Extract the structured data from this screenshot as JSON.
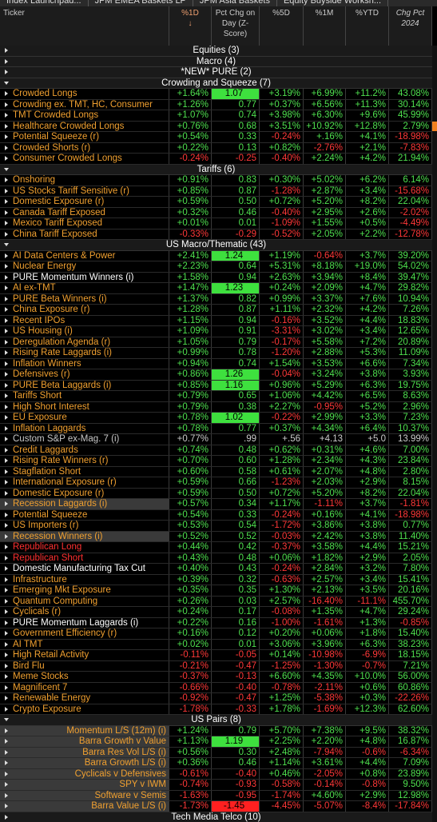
{
  "tabs": [
    "Index Launchpad...",
    "JPM EMEA Baskets LP",
    "JPM Asia Baskets",
    "Equity Buyside Worksh..."
  ],
  "columns": [
    {
      "lines": [
        "Ticker"
      ]
    },
    {
      "lines": [
        "%1D",
        "↓"
      ]
    },
    {
      "lines": [
        "Pct Chg on",
        "Day (Z-",
        "Score)"
      ]
    },
    {
      "lines": [
        "%5D"
      ]
    },
    {
      "lines": [
        "%1M"
      ]
    },
    {
      "lines": [
        "%YTD"
      ]
    },
    {
      "lines": [
        "Chg Pct",
        "2024"
      ]
    }
  ],
  "sections": [
    {
      "title": "Equities (3)"
    },
    {
      "title": "Macro (4)"
    },
    {
      "title": "*NEW* PURE (2)"
    },
    {
      "title": "Crowding and Squeeze (7)",
      "rows": [
        {
          "cells": [
            "Crowded Longs",
            "+1.64%",
            "1.07",
            "+3.19%",
            "+6.99%",
            "+11.2%",
            "43.08%"
          ],
          "highlight": "green"
        },
        {
          "cells": [
            "Crowding ex. TMT, HC, Consumer",
            "+1.26%",
            "0.77",
            "+0.37%",
            "+6.56%",
            "+11.3%",
            "30.14%"
          ]
        },
        {
          "cells": [
            "TMT Crowded Longs",
            "+1.07%",
            "0.74",
            "+3.98%",
            "+6.30%",
            "+9.6%",
            "45.99%"
          ]
        },
        {
          "cells": [
            "Healthcare Crowded Longs",
            "+0.76%",
            "0.68",
            "+3.51%",
            "+10.92%",
            "+12.8%",
            "2.79%"
          ]
        },
        {
          "cells": [
            "Potential Squeeze (r)",
            "+0.54%",
            "0.33",
            "-0.24%",
            "+.16%",
            "+4.1%",
            "-18.98%"
          ]
        },
        {
          "cells": [
            "Crowded Shorts (r)",
            "+0.22%",
            "0.13",
            "+0.82%",
            "-2.76%",
            "+2.1%",
            "-7.83%"
          ]
        },
        {
          "cells": [
            "Consumer Crowded Longs",
            "-0.24%",
            "-0.25",
            "-0.40%",
            "+2.24%",
            "+4.2%",
            "21.94%"
          ]
        }
      ]
    },
    {
      "title": "Tariffs (6)",
      "rows": [
        {
          "cells": [
            "Onshoring",
            "+0.91%",
            "0.83",
            "+0.30%",
            "+5.02%",
            "+6.2%",
            "6.14%"
          ]
        },
        {
          "cells": [
            "US Stocks Tariff Sensitive (r)",
            "+0.85%",
            "0.87",
            "-1.28%",
            "+2.87%",
            "+3.4%",
            "-15.68%"
          ]
        },
        {
          "cells": [
            "Domestic Exposure (r)",
            "+0.59%",
            "0.50",
            "+0.72%",
            "+5.20%",
            "+8.2%",
            "22.04%"
          ]
        },
        {
          "cells": [
            "Canada Tariff Exposed",
            "+0.32%",
            "0.46",
            "-0.40%",
            "+2.95%",
            "+2.6%",
            "-2.02%"
          ]
        },
        {
          "cells": [
            "Mexico Tariff Exposed",
            "+0.01%",
            "0.01",
            "-1.09%",
            "+1.55%",
            "+0.5%",
            "-4.49%"
          ]
        },
        {
          "cells": [
            "China Tariff Exposed",
            "-0.33%",
            "-0.29",
            "-0.52%",
            "+2.05%",
            "+2.2%",
            "-12.78%"
          ]
        }
      ]
    },
    {
      "title": "US Macro/Thematic (43)",
      "rows": [
        {
          "cells": [
            "AI Data Centers & Power",
            "+2.41%",
            "1.24",
            "+1.19%",
            "-0.64%",
            "+3.7%",
            "39.20%"
          ],
          "highlight": "green"
        },
        {
          "cells": [
            "Nuclear Energy",
            "+2.23%",
            "0.64",
            "+5.31%",
            "+8.18%",
            "+19.0%",
            "54.02%"
          ]
        },
        {
          "cells": [
            "PURE Momentum Winners (i)",
            "+1.58%",
            "0.94",
            "+2.63%",
            "+3.94%",
            "+8.4%",
            "39.47%"
          ],
          "name_color": "#ffffff"
        },
        {
          "cells": [
            "AI ex-TMT",
            "+1.47%",
            "1.23",
            "+0.24%",
            "+2.09%",
            "+4.7%",
            "29.82%"
          ],
          "highlight": "green"
        },
        {
          "cells": [
            "PURE Beta Winners (i)",
            "+1.37%",
            "0.82",
            "+0.99%",
            "+3.37%",
            "+7.6%",
            "10.94%"
          ]
        },
        {
          "cells": [
            "China Exposure (r)",
            "+1.28%",
            "0.87",
            "+1.11%",
            "+2.32%",
            "+4.2%",
            "7.26%"
          ]
        },
        {
          "cells": [
            "Recent IPOs",
            "+1.15%",
            "0.94",
            "-0.16%",
            "+3.52%",
            "+4.4%",
            "18.83%"
          ]
        },
        {
          "cells": [
            "US Housing (i)",
            "+1.09%",
            "0.91",
            "-3.31%",
            "+3.02%",
            "+3.4%",
            "12.65%"
          ]
        },
        {
          "cells": [
            "Deregulation Agenda (r)",
            "+1.05%",
            "0.79",
            "-0.17%",
            "+5.58%",
            "+7.2%",
            "20.89%"
          ]
        },
        {
          "cells": [
            "Rising Rate Laggards (i)",
            "+0.99%",
            "0.78",
            "-1.20%",
            "+2.88%",
            "+5.3%",
            "11.09%"
          ]
        },
        {
          "cells": [
            "Inflation Winners",
            "+0.94%",
            "0.74",
            "+1.54%",
            "+3.53%",
            "+6.6%",
            "7.34%"
          ]
        },
        {
          "cells": [
            "Defensives (r)",
            "+0.86%",
            "1.26",
            "-0.04%",
            "+3.24%",
            "+3.8%",
            "3.93%"
          ],
          "highlight": "green"
        },
        {
          "cells": [
            "PURE Beta Laggards (i)",
            "+0.85%",
            "1.16",
            "+0.96%",
            "+5.29%",
            "+6.3%",
            "19.75%"
          ],
          "highlight": "green"
        },
        {
          "cells": [
            "Tariffs Short",
            "+0.79%",
            "0.65",
            "+1.06%",
            "+4.42%",
            "+6.5%",
            "8.63%"
          ]
        },
        {
          "cells": [
            "High Short Interest",
            "+0.79%",
            "0.38",
            "+2.27%",
            "-0.95%",
            "+5.2%",
            "2.96%"
          ]
        },
        {
          "cells": [
            "EU Exposure",
            "+0.78%",
            "1.02",
            "-0.22%",
            "+2.99%",
            "+3.3%",
            "7.23%"
          ],
          "highlight": "green"
        },
        {
          "cells": [
            "Inflation Laggards",
            "+0.78%",
            "0.77",
            "+0.37%",
            "+4.34%",
            "+6.4%",
            "10.37%"
          ]
        },
        {
          "cells": [
            "Custom S&P ex-Mag. 7 (i)",
            "+0.77%",
            ".99",
            "+.56",
            "+4.13",
            "+5.0",
            "13.99%"
          ],
          "name_color": "#c8c8c8",
          "muted": true
        },
        {
          "cells": [
            "Credit Laggards",
            "+0.74%",
            "0.48",
            "+0.62%",
            "+0.31%",
            "+4.6%",
            "7.00%"
          ]
        },
        {
          "cells": [
            "Rising Rate Winners (r)",
            "+0.70%",
            "0.60",
            "+1.28%",
            "+2.34%",
            "+4.3%",
            "23.84%"
          ]
        },
        {
          "cells": [
            "Stagflation Short",
            "+0.60%",
            "0.58",
            "+0.61%",
            "+2.07%",
            "+4.8%",
            "2.80%"
          ]
        },
        {
          "cells": [
            "International Exposure (r)",
            "+0.59%",
            "0.66",
            "-1.23%",
            "+2.03%",
            "+2.9%",
            "8.15%"
          ]
        },
        {
          "cells": [
            "Domestic Exposure (r)",
            "+0.59%",
            "0.50",
            "+0.72%",
            "+5.20%",
            "+8.2%",
            "22.04%"
          ]
        },
        {
          "cells": [
            "Recession Laggards (i)",
            "+0.57%",
            "0.34",
            "+1.17%",
            "-1.11%",
            "+3.7%",
            "-1.81%"
          ],
          "row_bg": "#3a3a3a"
        },
        {
          "cells": [
            "Potential Squeeze",
            "+0.54%",
            "0.33",
            "-0.24%",
            "+0.16%",
            "+4.1%",
            "-18.98%"
          ]
        },
        {
          "cells": [
            "US Importers (r)",
            "+0.53%",
            "0.54",
            "-1.72%",
            "+3.86%",
            "+3.8%",
            "0.77%"
          ]
        },
        {
          "cells": [
            "Recession Winners (i)",
            "+0.52%",
            "0.52",
            "-0.03%",
            "+2.42%",
            "+3.8%",
            "11.40%"
          ],
          "row_bg": "#3a3a3a"
        },
        {
          "cells": [
            "Republican Long",
            "+0.44%",
            "0.42",
            "-0.37%",
            "+3.58%",
            "+4.4%",
            "15.21%"
          ],
          "name_color": "#ff3030"
        },
        {
          "cells": [
            "Republican Short",
            "+0.43%",
            "0.48",
            "+0.06%",
            "+1.82%",
            "+2.9%",
            "2.05%"
          ],
          "name_color": "#ff3030"
        },
        {
          "cells": [
            "Domestic Manufacturing Tax Cut",
            "+0.40%",
            "0.43",
            "-0.24%",
            "+2.84%",
            "+3.2%",
            "7.80%"
          ],
          "name_color": "#ffffff"
        },
        {
          "cells": [
            "Infrastructure",
            "+0.39%",
            "0.32",
            "-0.63%",
            "+2.57%",
            "+3.4%",
            "15.41%"
          ]
        },
        {
          "cells": [
            "Emerging Mkt Exposure",
            "+0.35%",
            "0.35",
            "+1.30%",
            "+2.13%",
            "+3.5%",
            "20.16%"
          ]
        },
        {
          "cells": [
            "Quantum Computing",
            "+0.26%",
            "0.03",
            "+2.57%",
            "-16.40%",
            "-11.1%",
            "455.70%"
          ]
        },
        {
          "cells": [
            "Cyclicals (r)",
            "+0.24%",
            "0.17",
            "-0.08%",
            "+1.35%",
            "+4.7%",
            "29.24%"
          ]
        },
        {
          "cells": [
            "PURE Momentum Laggards (i)",
            "+0.22%",
            "0.16",
            "-1.00%",
            "-1.61%",
            "+1.3%",
            "-0.85%"
          ],
          "name_color": "#ffffff"
        },
        {
          "cells": [
            "Government Efficiency (r)",
            "+0.16%",
            "0.12",
            "+0.20%",
            "+0.06%",
            "+1.8%",
            "15.40%"
          ]
        },
        {
          "cells": [
            "AI TMT",
            "+0.02%",
            "0.01",
            "+3.06%",
            "+3.96%",
            "+6.3%",
            "38.23%"
          ]
        },
        {
          "cells": [
            "High Retail Activity",
            "-0.11%",
            "-0.05",
            "+0.14%",
            "-10.98%",
            "-6.9%",
            "18.15%"
          ]
        },
        {
          "cells": [
            "Bird Flu",
            "-0.21%",
            "-0.47",
            "-1.25%",
            "-1.30%",
            "-0.7%",
            "7.21%"
          ]
        },
        {
          "cells": [
            "Meme Stocks",
            "-0.37%",
            "-0.13",
            "+6.60%",
            "+4.35%",
            "+10.0%",
            "56.00%"
          ]
        },
        {
          "cells": [
            "Magnificent 7",
            "-0.66%",
            "-0.40",
            "-0.78%",
            "-2.11%",
            "+0.6%",
            "60.86%"
          ]
        },
        {
          "cells": [
            "Renewable Energy",
            "-0.92%",
            "-0.47",
            "+1.25%",
            "-5.38%",
            "+0.3%",
            "-22.26%"
          ]
        },
        {
          "cells": [
            "Crypto Exposure",
            "-1.78%",
            "-0.33",
            "+1.78%",
            "-1.69%",
            "+12.3%",
            "62.60%"
          ]
        }
      ]
    },
    {
      "title": "US Pairs (8)",
      "align": "right",
      "rows": [
        {
          "cells": [
            "Momentum L/S (12m) (i)",
            "+1.24%",
            "0.79",
            "+5.70%",
            "+7.38%",
            "+9.5%",
            "38.32%"
          ]
        },
        {
          "cells": [
            "Barra Growth v Value",
            "+1.13%",
            "1.19",
            "+2.25%",
            "+2.20%",
            "+4.8%",
            "16.87%"
          ],
          "highlight": "green"
        },
        {
          "cells": [
            "Barra Res Vol L/S (i)",
            "+0.56%",
            "0.30",
            "+2.48%",
            "-7.94%",
            "-0.6%",
            "-6.34%"
          ]
        },
        {
          "cells": [
            "Barra Growth L/S (i)",
            "+0.36%",
            "0.46",
            "+1.14%",
            "+3.61%",
            "+4.4%",
            "7.09%"
          ]
        },
        {
          "cells": [
            "Cyclicals v Defensives",
            "-0.61%",
            "-0.40",
            "+0.46%",
            "-2.05%",
            "+0.8%",
            "23.89%"
          ]
        },
        {
          "cells": [
            "SPY v IWM",
            "-0.74%",
            "-0.93",
            "-0.58%",
            "-0.14%",
            "-0.8%",
            "9.50%"
          ]
        },
        {
          "cells": [
            "Software v Semis",
            "-1.63%",
            "-0.95",
            "-1.74%",
            "+4.60%",
            "+2.9%",
            "12.98%"
          ]
        },
        {
          "cells": [
            "Barra Value L/S (i)",
            "-1.73%",
            "-1.45",
            "-4.45%",
            "-5.07%",
            "-8.4%",
            "-17.84%"
          ],
          "highlight": "red"
        }
      ]
    },
    {
      "title": "Tech Media Telco (10)"
    }
  ]
}
